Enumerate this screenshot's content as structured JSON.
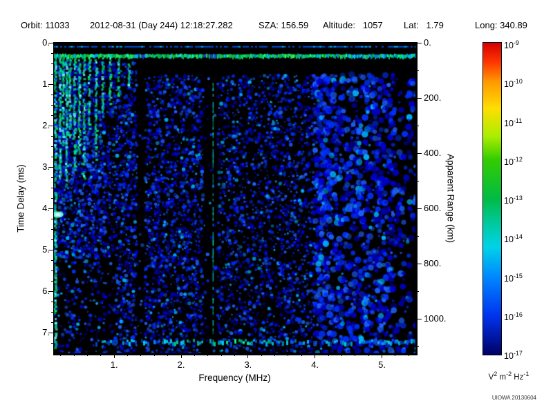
{
  "header": {
    "fields": [
      "Orbit: 11033",
      "2012-08-31 (Day 244) 12:18:27.282",
      "SZA: 156.59",
      "Altitude:   1057",
      "Lat:   1.79",
      "Long: 340.89"
    ]
  },
  "credit": "UIOWA 20130604",
  "chart_data": {
    "type": "heatmap",
    "description": "Radar sounder ionogram: received spectral density vs frequency and time delay",
    "title": "",
    "xlabel": "Frequency (MHz)",
    "ylabel": "Time Delay (ms)",
    "y2label": "Apparent Range (km)",
    "xlim": [
      0.1,
      5.5
    ],
    "ylim": [
      0,
      7.5
    ],
    "y_axis_points_downward": true,
    "grid": false,
    "legend_position": "colorbar-right",
    "xticks": [
      "1.",
      "2.",
      "3.",
      "4.",
      "5."
    ],
    "xtick_values": [
      1,
      2,
      3,
      4,
      5
    ],
    "yticks": [
      "0.",
      "1.",
      "2.",
      "3.",
      "4.",
      "5.",
      "6.",
      "7."
    ],
    "ytick_values": [
      0,
      1,
      2,
      3,
      4,
      5,
      6,
      7
    ],
    "y2ticks": [
      "0.",
      "200.",
      "400.",
      "600.",
      "800.",
      "1000."
    ],
    "y2tick_values": [
      0,
      200,
      400,
      600,
      800,
      1000
    ],
    "range_per_ms_km": 150,
    "colorbar": {
      "scale": "log",
      "tick_base": "10",
      "tick_exponents": [
        "-9",
        "-10",
        "-11",
        "-12",
        "-13",
        "-14",
        "-15",
        "-16",
        "-17"
      ],
      "units_parts": [
        [
          "V",
          "2"
        ],
        [
          "m",
          "-2"
        ],
        [
          "Hz",
          "-1"
        ]
      ],
      "gradient": [
        [
          0.0,
          "#d40000"
        ],
        [
          0.06,
          "#ff3300"
        ],
        [
          0.125,
          "#ff9900"
        ],
        [
          0.21,
          "#ffdd00"
        ],
        [
          0.3,
          "#aaee00"
        ],
        [
          0.375,
          "#33cc00"
        ],
        [
          0.5,
          "#00bb44"
        ],
        [
          0.58,
          "#00c9a0"
        ],
        [
          0.655,
          "#00d2e8"
        ],
        [
          0.75,
          "#0088ff"
        ],
        [
          0.875,
          "#0033ee"
        ],
        [
          1.0,
          "#000066"
        ]
      ]
    },
    "features": {
      "seed": 1337,
      "background": "#000000",
      "noise_floor_exponent": -16.5,
      "top_band": {
        "t": 0.3,
        "colors": [
          "#00e055",
          "#30ff60",
          "#00ffb0",
          "#00ccff"
        ]
      },
      "top_edge_line_t": 0.08,
      "quiet_gap_t": [
        0.45,
        0.78
      ],
      "surface_reflection": {
        "t": 7.2,
        "f_start": 0.72,
        "bright_f": [
          1.8,
          3.3
        ]
      },
      "dark_bands_f": [
        [
          1.33,
          1.46
        ],
        [
          2.33,
          2.52
        ]
      ],
      "thin_vertical_line": {
        "f": 2.47,
        "t0": 0.9,
        "t1": 7.35
      },
      "plasma_streaks": [
        {
          "f": 0.115,
          "t_end": 7.45
        },
        {
          "f": 0.18,
          "t_end": 3.3
        },
        {
          "f": 0.23,
          "t_end": 2.5
        },
        {
          "f": 0.28,
          "t_end": 3.5
        },
        {
          "f": 0.33,
          "t_end": 2.3
        },
        {
          "f": 0.4,
          "t_end": 3.1
        },
        {
          "f": 0.47,
          "t_end": 2.7
        },
        {
          "f": 0.54,
          "t_end": 3.4
        },
        {
          "f": 0.62,
          "t_end": 2.1
        },
        {
          "f": 0.72,
          "t_end": 2.9
        },
        {
          "f": 0.82,
          "t_end": 1.7
        },
        {
          "f": 0.93,
          "t_end": 1.5
        },
        {
          "f": 1.06,
          "t_end": 1.3
        },
        {
          "f": 1.21,
          "t_end": 1.1
        }
      ],
      "bright_blob": {
        "f": 0.16,
        "t": 4.15
      },
      "speckle_density_by_f": [
        [
          0.1,
          0.4
        ],
        [
          0.85,
          0.36
        ],
        [
          1.8,
          0.32
        ],
        [
          2.3,
          0.28
        ],
        [
          4.2,
          0.2
        ],
        [
          5.15,
          0.09
        ]
      ]
    }
  }
}
